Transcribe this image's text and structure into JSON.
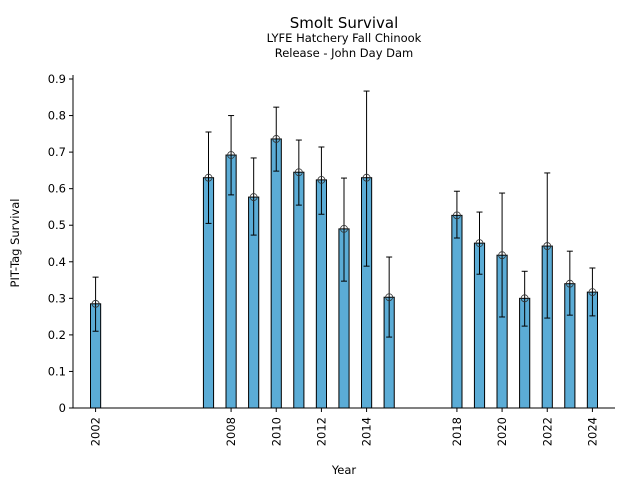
{
  "chart_data": {
    "type": "bar",
    "title": "Smolt Survival",
    "subtitle_lines": [
      "LYFE Hatchery Fall Chinook",
      "Release - John Day Dam"
    ],
    "xlabel": "Year",
    "ylabel": "PIT-Tag Survival",
    "ylim": [
      0,
      0.9
    ],
    "yticks": [
      0,
      0.1,
      0.2,
      0.3,
      0.4,
      0.5,
      0.6,
      0.7,
      0.8,
      0.9
    ],
    "ytick_labels": [
      "0",
      "0.1",
      "0.2",
      "0.3",
      "0.4",
      "0.5",
      "0.6",
      "0.7",
      "0.8",
      "0.9"
    ],
    "xlim": [
      2001,
      2025
    ],
    "xticks": [
      2002,
      2008,
      2010,
      2012,
      2014,
      2018,
      2020,
      2022,
      2024
    ],
    "xtick_labels": [
      "2002",
      "2008",
      "2010",
      "2012",
      "2014",
      "2018",
      "2020",
      "2022",
      "2024"
    ],
    "bar_color": "#5bacd6",
    "edge_color": "#000000",
    "grid": false,
    "legend": "none",
    "categories": [
      2002,
      2007,
      2008,
      2009,
      2010,
      2011,
      2012,
      2013,
      2014,
      2015,
      2018,
      2019,
      2020,
      2021,
      2022,
      2023,
      2024
    ],
    "values": [
      0.285,
      0.63,
      0.692,
      0.577,
      0.736,
      0.645,
      0.624,
      0.49,
      0.63,
      0.303,
      0.527,
      0.451,
      0.418,
      0.3,
      0.443,
      0.34,
      0.317
    ],
    "err_low": [
      0.21,
      0.505,
      0.583,
      0.473,
      0.648,
      0.555,
      0.53,
      0.347,
      0.388,
      0.194,
      0.465,
      0.366,
      0.249,
      0.224,
      0.246,
      0.254,
      0.252
    ],
    "err_high": [
      0.358,
      0.755,
      0.8,
      0.684,
      0.823,
      0.733,
      0.714,
      0.629,
      0.867,
      0.413,
      0.593,
      0.536,
      0.588,
      0.374,
      0.643,
      0.429,
      0.383
    ]
  }
}
